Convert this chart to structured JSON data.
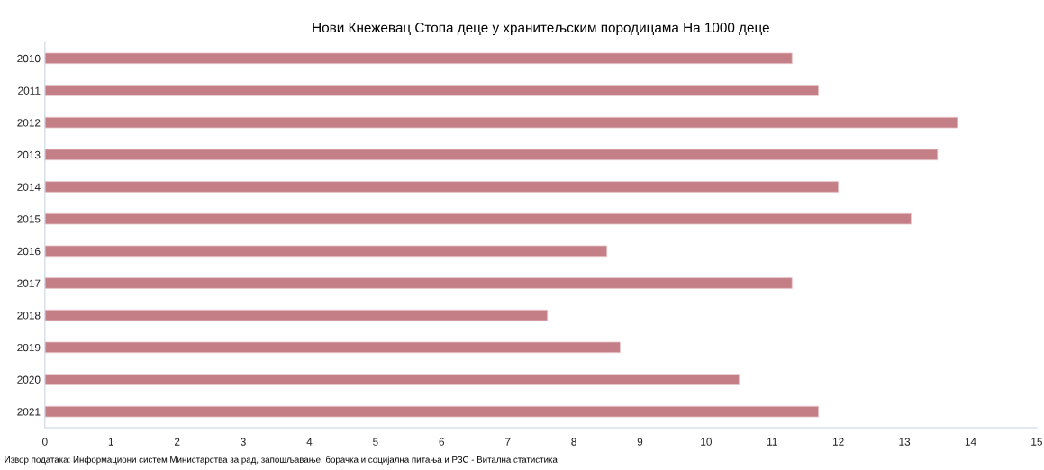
{
  "chart_data": {
    "type": "bar",
    "orientation": "horizontal",
    "title": "Нови Кнежевац Стопа деце у хранитељским породицама На 1000 деце",
    "categories": [
      "2010",
      "2011",
      "2012",
      "2013",
      "2014",
      "2015",
      "2016",
      "2017",
      "2018",
      "2019",
      "2020",
      "2021"
    ],
    "values": [
      11.3,
      11.7,
      13.8,
      13.5,
      12.0,
      13.1,
      8.5,
      11.3,
      7.6,
      8.7,
      10.5,
      11.7
    ],
    "color": "#c47f86",
    "xlim": [
      0,
      15
    ],
    "xticks": [
      0,
      1,
      2,
      3,
      4,
      5,
      6,
      7,
      8,
      9,
      10,
      11,
      12,
      13,
      14,
      15
    ],
    "grid": false,
    "annotations": [
      "Извор података: Информациони систем Министарства за рад, запошљавање, борачка и социјална питања и РЗС - Витална статистика"
    ]
  }
}
